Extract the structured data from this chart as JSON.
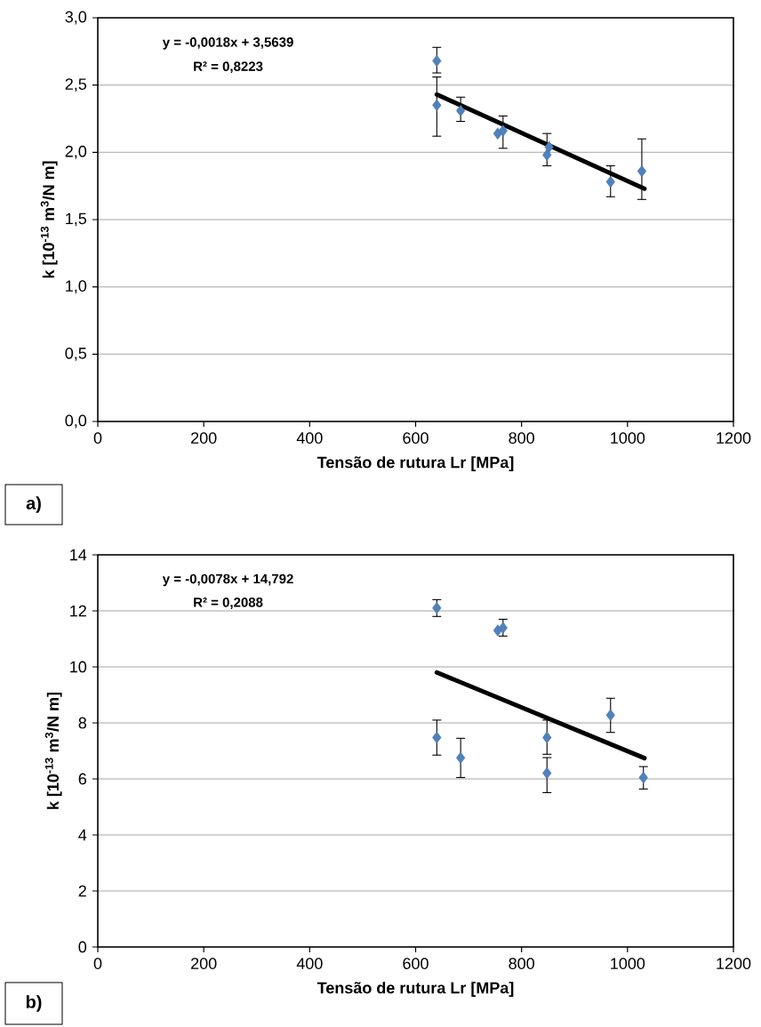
{
  "chart_data": [
    {
      "type": "scatter",
      "xlabel": "Tensão de rutura Lr [MPa]",
      "ylabel": "k [10$^{-13}$ m$^{3}$/N m]",
      "xlim": [
        0,
        1200
      ],
      "xticks": [
        0,
        200,
        400,
        600,
        800,
        1000,
        1200
      ],
      "ylim": [
        0,
        3
      ],
      "yticks": [
        {
          "value": 0,
          "label": "0,0"
        },
        {
          "value": 0.5,
          "label": "0,5"
        },
        {
          "value": 1,
          "label": "1,0"
        },
        {
          "value": 1.5,
          "label": "1,5"
        },
        {
          "value": 2,
          "label": "2,0"
        },
        {
          "value": 2.5,
          "label": "2,5"
        },
        {
          "value": 3,
          "label": "3,0"
        }
      ],
      "grid": "y",
      "marker": "diamond",
      "series": [
        {
          "color": "#4f81bd",
          "x": [
            640,
            640,
            685,
            755,
            765,
            848,
            852,
            968,
            1027
          ],
          "values": [
            2.68,
            2.35,
            2.31,
            2.14,
            2.16,
            1.98,
            2.04,
            1.78,
            1.86
          ],
          "errors": [
            [
              2.59,
              2.78
            ],
            [
              2.12,
              2.56
            ],
            [
              2.23,
              2.41
            ],
            null,
            [
              2.03,
              2.27
            ],
            [
              1.9,
              2.14
            ],
            null,
            [
              1.67,
              1.9
            ],
            [
              1.65,
              2.1
            ]
          ]
        },
        {
          "type": "line",
          "marker": "none",
          "color": "#000000",
          "x": [
            640,
            1032
          ],
          "values": [
            2.43,
            1.73
          ]
        }
      ],
      "annotations": [
        "y = -0,0018x + 3,5639",
        "R² = 0,8223",
        "a)"
      ]
    },
    {
      "type": "scatter",
      "xlabel": "Tensão de rutura Lr [MPa]",
      "ylabel": "k [10$^{-13}$ m$^{3}$/N m]",
      "xlim": [
        0,
        1200
      ],
      "xticks": [
        0,
        200,
        400,
        600,
        800,
        1000,
        1200
      ],
      "ylim": [
        0,
        14
      ],
      "yticks": [
        0,
        2,
        4,
        6,
        8,
        10,
        12,
        14
      ],
      "grid": "y",
      "marker": "diamond",
      "series": [
        {
          "color": "#4f81bd",
          "x": [
            640,
            640,
            685,
            755,
            765,
            848,
            848,
            968,
            1030
          ],
          "values": [
            12.1,
            7.48,
            6.75,
            11.3,
            11.4,
            7.48,
            6.21,
            8.28,
            6.05
          ],
          "errors": [
            [
              11.8,
              12.4
            ],
            [
              6.85,
              8.1
            ],
            [
              6.05,
              7.45
            ],
            null,
            [
              11.1,
              11.7
            ],
            [
              6.88,
              8.1
            ],
            [
              5.51,
              6.76
            ],
            [
              7.66,
              8.88
            ],
            [
              5.64,
              6.44
            ]
          ]
        },
        {
          "type": "line",
          "marker": "none",
          "color": "#000000",
          "x": [
            640,
            1032
          ],
          "values": [
            9.8,
            6.74
          ]
        }
      ],
      "annotations": [
        "y = -0,0078x + 14,792",
        "R² = 0,2088",
        "b)"
      ]
    }
  ]
}
